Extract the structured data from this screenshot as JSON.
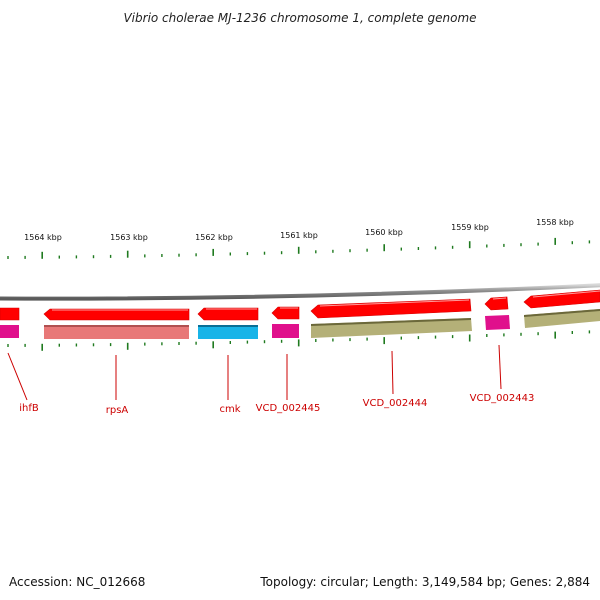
{
  "title": "Vibrio cholerae MJ-1236 chromosome 1, complete genome",
  "scale_labels": [
    "1564 kbp",
    "1563 kbp",
    "1562 kbp",
    "1561 kbp",
    "1560 kbp",
    "1559 kbp",
    "1558 kbp"
  ],
  "genes": [
    {
      "name": "ihfB"
    },
    {
      "name": "rpsA"
    },
    {
      "name": "cmk"
    },
    {
      "name": "VCD_002445"
    },
    {
      "name": "VCD_002444"
    },
    {
      "name": "VCD_002443"
    }
  ],
  "footer": {
    "accession": "Accession: NC_012668",
    "topology": "Topology: circular; Length: 3,149,584 bp; Genes: 2,884"
  },
  "colors": {
    "cds": "#ff0000",
    "backbone": "#8c8c8c",
    "tick": "#1f7a1f",
    "label": "#cc0000",
    "cog_pink": "#e87878",
    "cog_magenta": "#e0108c",
    "cog_cyan": "#18b4e8",
    "cog_olive": "#b4b078"
  }
}
